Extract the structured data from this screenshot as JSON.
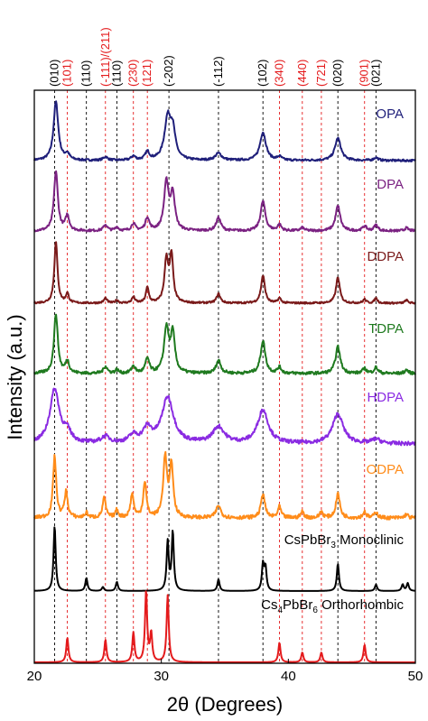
{
  "chart_data": {
    "type": "line",
    "title": "",
    "xlabel": "2θ (Degrees)",
    "ylabel": "Intensity (a.u.)",
    "xlim": [
      20,
      50
    ],
    "xticks": [
      20,
      30,
      40,
      50
    ],
    "yticks": [],
    "grid": false,
    "plot_frame": true,
    "reference_lines": [
      {
        "x": 21.6,
        "label": "(010)",
        "color": "#000000"
      },
      {
        "x": 22.6,
        "label": "(101)",
        "color": "#e41a1c"
      },
      {
        "x": 24.1,
        "label": "(110)",
        "color": "#000000"
      },
      {
        "x": 25.6,
        "label": "(-111)/(211)",
        "color": "#e41a1c"
      },
      {
        "x": 26.5,
        "label": "(110)",
        "color": "#000000"
      },
      {
        "x": 27.8,
        "label": "(230)",
        "color": "#e41a1c"
      },
      {
        "x": 28.9,
        "label": "(121)",
        "color": "#e41a1c"
      },
      {
        "x": 30.6,
        "label": "(-202)",
        "color": "#000000"
      },
      {
        "x": 34.5,
        "label": "(-112)",
        "color": "#000000"
      },
      {
        "x": 38.0,
        "label": "(102)",
        "color": "#000000"
      },
      {
        "x": 39.3,
        "label": "(340)",
        "color": "#e41a1c"
      },
      {
        "x": 41.1,
        "label": "(440)",
        "color": "#e41a1c"
      },
      {
        "x": 42.6,
        "label": "(721)",
        "color": "#e41a1c"
      },
      {
        "x": 43.9,
        "label": "(020)",
        "color": "#000000"
      },
      {
        "x": 46.0,
        "label": "(901)",
        "color": "#e41a1c"
      },
      {
        "x": 46.9,
        "label": "(021)",
        "color": "#000000"
      }
    ],
    "series": [
      {
        "name": "OPA",
        "color": "#1f1f7a",
        "noise": 0.018,
        "peaks": [
          {
            "x": 21.7,
            "h": 1.0,
            "w": 0.22
          },
          {
            "x": 22.6,
            "h": 0.1,
            "w": 0.2
          },
          {
            "x": 25.6,
            "h": 0.06,
            "w": 0.2
          },
          {
            "x": 27.8,
            "h": 0.07,
            "w": 0.2
          },
          {
            "x": 28.9,
            "h": 0.14,
            "w": 0.2
          },
          {
            "x": 30.5,
            "h": 0.7,
            "w": 0.3
          },
          {
            "x": 30.9,
            "h": 0.45,
            "w": 0.25
          },
          {
            "x": 34.5,
            "h": 0.12,
            "w": 0.3
          },
          {
            "x": 38.0,
            "h": 0.48,
            "w": 0.28
          },
          {
            "x": 39.3,
            "h": 0.06,
            "w": 0.2
          },
          {
            "x": 43.9,
            "h": 0.38,
            "w": 0.28
          },
          {
            "x": 46.9,
            "h": 0.05,
            "w": 0.2
          }
        ]
      },
      {
        "name": "DPA",
        "color": "#7b2282",
        "noise": 0.02,
        "peaks": [
          {
            "x": 21.7,
            "h": 1.0,
            "w": 0.18
          },
          {
            "x": 22.6,
            "h": 0.25,
            "w": 0.18
          },
          {
            "x": 25.6,
            "h": 0.1,
            "w": 0.18
          },
          {
            "x": 26.5,
            "h": 0.06,
            "w": 0.15
          },
          {
            "x": 27.8,
            "h": 0.12,
            "w": 0.18
          },
          {
            "x": 28.9,
            "h": 0.22,
            "w": 0.18
          },
          {
            "x": 30.4,
            "h": 0.8,
            "w": 0.22
          },
          {
            "x": 30.9,
            "h": 0.6,
            "w": 0.2
          },
          {
            "x": 34.5,
            "h": 0.22,
            "w": 0.22
          },
          {
            "x": 38.0,
            "h": 0.5,
            "w": 0.22
          },
          {
            "x": 39.3,
            "h": 0.1,
            "w": 0.18
          },
          {
            "x": 41.1,
            "h": 0.05,
            "w": 0.18
          },
          {
            "x": 43.9,
            "h": 0.42,
            "w": 0.22
          },
          {
            "x": 46.0,
            "h": 0.08,
            "w": 0.18
          },
          {
            "x": 46.9,
            "h": 0.1,
            "w": 0.18
          },
          {
            "x": 49.3,
            "h": 0.05,
            "w": 0.18
          }
        ]
      },
      {
        "name": "DDPA",
        "color": "#7a1a1a",
        "noise": 0.015,
        "peaks": [
          {
            "x": 21.7,
            "h": 1.0,
            "w": 0.15
          },
          {
            "x": 22.6,
            "h": 0.15,
            "w": 0.14
          },
          {
            "x": 25.6,
            "h": 0.08,
            "w": 0.14
          },
          {
            "x": 26.5,
            "h": 0.05,
            "w": 0.12
          },
          {
            "x": 27.8,
            "h": 0.1,
            "w": 0.14
          },
          {
            "x": 28.9,
            "h": 0.25,
            "w": 0.14
          },
          {
            "x": 30.4,
            "h": 0.7,
            "w": 0.18
          },
          {
            "x": 30.8,
            "h": 0.75,
            "w": 0.16
          },
          {
            "x": 34.5,
            "h": 0.15,
            "w": 0.18
          },
          {
            "x": 38.0,
            "h": 0.45,
            "w": 0.18
          },
          {
            "x": 39.3,
            "h": 0.08,
            "w": 0.14
          },
          {
            "x": 43.9,
            "h": 0.42,
            "w": 0.18
          },
          {
            "x": 46.0,
            "h": 0.06,
            "w": 0.14
          },
          {
            "x": 46.9,
            "h": 0.08,
            "w": 0.14
          },
          {
            "x": 49.3,
            "h": 0.05,
            "w": 0.14
          }
        ]
      },
      {
        "name": "TDPA",
        "color": "#1f7a1f",
        "noise": 0.025,
        "peaks": [
          {
            "x": 21.7,
            "h": 1.0,
            "w": 0.18
          },
          {
            "x": 22.6,
            "h": 0.2,
            "w": 0.18
          },
          {
            "x": 25.6,
            "h": 0.12,
            "w": 0.18
          },
          {
            "x": 26.5,
            "h": 0.06,
            "w": 0.15
          },
          {
            "x": 27.8,
            "h": 0.12,
            "w": 0.18
          },
          {
            "x": 28.9,
            "h": 0.25,
            "w": 0.18
          },
          {
            "x": 30.4,
            "h": 0.75,
            "w": 0.22
          },
          {
            "x": 30.9,
            "h": 0.65,
            "w": 0.2
          },
          {
            "x": 34.5,
            "h": 0.22,
            "w": 0.22
          },
          {
            "x": 38.0,
            "h": 0.55,
            "w": 0.22
          },
          {
            "x": 39.3,
            "h": 0.1,
            "w": 0.18
          },
          {
            "x": 43.9,
            "h": 0.45,
            "w": 0.22
          },
          {
            "x": 46.0,
            "h": 0.08,
            "w": 0.18
          },
          {
            "x": 46.9,
            "h": 0.1,
            "w": 0.18
          },
          {
            "x": 49.3,
            "h": 0.06,
            "w": 0.18
          }
        ]
      },
      {
        "name": "HDPA",
        "color": "#8a2be2",
        "noise": 0.035,
        "peaks": [
          {
            "x": 21.6,
            "h": 1.0,
            "w": 0.45
          },
          {
            "x": 22.6,
            "h": 0.18,
            "w": 0.35
          },
          {
            "x": 25.6,
            "h": 0.12,
            "w": 0.4
          },
          {
            "x": 27.8,
            "h": 0.14,
            "w": 0.4
          },
          {
            "x": 28.9,
            "h": 0.26,
            "w": 0.4
          },
          {
            "x": 30.5,
            "h": 0.85,
            "w": 0.55
          },
          {
            "x": 34.5,
            "h": 0.3,
            "w": 0.55
          },
          {
            "x": 38.0,
            "h": 0.62,
            "w": 0.5
          },
          {
            "x": 43.9,
            "h": 0.55,
            "w": 0.5
          },
          {
            "x": 46.9,
            "h": 0.08,
            "w": 0.4
          }
        ]
      },
      {
        "name": "ODPA",
        "color": "#ff8c1a",
        "noise": 0.03,
        "peaks": [
          {
            "x": 21.6,
            "h": 1.0,
            "w": 0.15
          },
          {
            "x": 22.5,
            "h": 0.42,
            "w": 0.15
          },
          {
            "x": 24.1,
            "h": 0.08,
            "w": 0.14
          },
          {
            "x": 25.5,
            "h": 0.32,
            "w": 0.15
          },
          {
            "x": 26.5,
            "h": 0.12,
            "w": 0.14
          },
          {
            "x": 27.7,
            "h": 0.38,
            "w": 0.15
          },
          {
            "x": 28.7,
            "h": 0.58,
            "w": 0.15
          },
          {
            "x": 30.3,
            "h": 0.98,
            "w": 0.18
          },
          {
            "x": 30.8,
            "h": 0.85,
            "w": 0.16
          },
          {
            "x": 34.5,
            "h": 0.2,
            "w": 0.22
          },
          {
            "x": 38.0,
            "h": 0.4,
            "w": 0.18
          },
          {
            "x": 39.3,
            "h": 0.18,
            "w": 0.15
          },
          {
            "x": 41.1,
            "h": 0.1,
            "w": 0.15
          },
          {
            "x": 42.6,
            "h": 0.1,
            "w": 0.15
          },
          {
            "x": 43.9,
            "h": 0.4,
            "w": 0.18
          },
          {
            "x": 46.0,
            "h": 0.1,
            "w": 0.15
          },
          {
            "x": 46.9,
            "h": 0.1,
            "w": 0.15
          },
          {
            "x": 49.3,
            "h": 0.06,
            "w": 0.15
          }
        ]
      },
      {
        "name": "CsPbBr3 Monoclinic",
        "color": "#000000",
        "noise": 0.0,
        "peaks": [
          {
            "x": 21.6,
            "h": 1.0,
            "w": 0.1
          },
          {
            "x": 24.1,
            "h": 0.2,
            "w": 0.1
          },
          {
            "x": 25.4,
            "h": 0.06,
            "w": 0.1
          },
          {
            "x": 26.5,
            "h": 0.14,
            "w": 0.1
          },
          {
            "x": 30.5,
            "h": 0.75,
            "w": 0.1
          },
          {
            "x": 30.9,
            "h": 0.9,
            "w": 0.1
          },
          {
            "x": 34.5,
            "h": 0.18,
            "w": 0.1
          },
          {
            "x": 38.0,
            "h": 0.4,
            "w": 0.1
          },
          {
            "x": 38.2,
            "h": 0.35,
            "w": 0.1
          },
          {
            "x": 43.9,
            "h": 0.42,
            "w": 0.1
          },
          {
            "x": 46.9,
            "h": 0.1,
            "w": 0.1
          },
          {
            "x": 49.0,
            "h": 0.1,
            "w": 0.1
          },
          {
            "x": 49.4,
            "h": 0.12,
            "w": 0.1
          }
        ]
      },
      {
        "name": "Cs4PbBr6 Orthorhombic",
        "color": "#e41a1c",
        "noise": 0.0,
        "peaks": [
          {
            "x": 22.6,
            "h": 0.35,
            "w": 0.1
          },
          {
            "x": 25.6,
            "h": 0.32,
            "w": 0.1
          },
          {
            "x": 27.8,
            "h": 0.42,
            "w": 0.1
          },
          {
            "x": 28.8,
            "h": 1.0,
            "w": 0.1
          },
          {
            "x": 29.2,
            "h": 0.4,
            "w": 0.1
          },
          {
            "x": 30.5,
            "h": 0.95,
            "w": 0.1
          },
          {
            "x": 39.3,
            "h": 0.28,
            "w": 0.1
          },
          {
            "x": 41.1,
            "h": 0.14,
            "w": 0.1
          },
          {
            "x": 42.6,
            "h": 0.14,
            "w": 0.1
          },
          {
            "x": 46.0,
            "h": 0.25,
            "w": 0.1
          }
        ]
      }
    ]
  },
  "legend": {
    "opa": "OPA",
    "dpa": "DPA",
    "ddpa": "DDPA",
    "tdpa": "TDPA",
    "hdpa": "HDPA",
    "odpa": "ODPA",
    "mono_prefix": "CsPbBr",
    "mono_sub": "3",
    "mono_suffix": " Monoclinic",
    "ortho_prefix": "Cs",
    "ortho_sub1": "4",
    "ortho_mid": "PbBr",
    "ortho_sub2": "6",
    "ortho_suffix": " Orthorhombic"
  }
}
